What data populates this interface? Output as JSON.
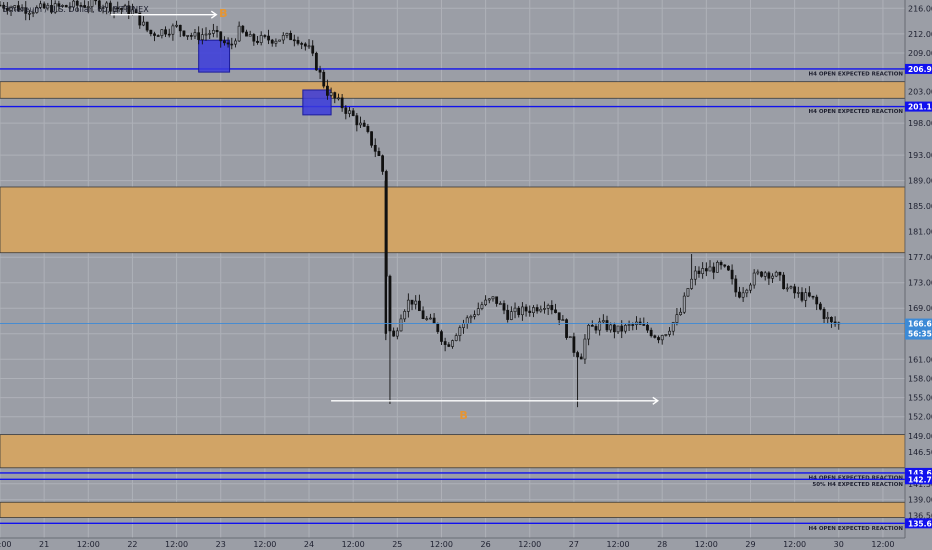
{
  "window": {
    "symbol_title": "Ethereum / U.S. Dollar, 60, BITFINEX"
  },
  "colors": {
    "background": "#9b9ea6",
    "grid": "#aeb1b8",
    "zone_fill": "#d1a466",
    "zone_border": "#3a3a3a",
    "level_line": "#1111ee",
    "current_price": "#3c8ad6",
    "candle_body": "#111111",
    "candle_wick": "#111111",
    "arrow": "#ffffff",
    "marker": "#e69532",
    "volume_box": "#3b3bdc"
  },
  "chart_data": {
    "type": "candlestick",
    "symbol": "ETHUSD",
    "timeframe": "60",
    "exchange": "BITFINEX",
    "ylim": [
      133.0,
      217.3
    ],
    "price_ticks": [
      "216.00",
      "212.00",
      "209.00",
      "203.00",
      "198.00",
      "193.00",
      "189.00",
      "185.00",
      "181.00",
      "177.00",
      "173.00",
      "169.00",
      "165.00",
      "161.00",
      "158.00",
      "155.00",
      "152.00",
      "149.00",
      "146.50",
      "141.50",
      "139.00",
      "136.50"
    ],
    "time_axis": {
      "range_days": [
        20.5,
        30.75
      ],
      "ticks": [
        {
          "t": 20.5,
          "label": "12:00"
        },
        {
          "t": 21.0,
          "label": "21"
        },
        {
          "t": 21.5,
          "label": "12:00"
        },
        {
          "t": 22.0,
          "label": "22"
        },
        {
          "t": 22.5,
          "label": "12:00"
        },
        {
          "t": 23.0,
          "label": "23"
        },
        {
          "t": 23.5,
          "label": "12:00"
        },
        {
          "t": 24.0,
          "label": "24"
        },
        {
          "t": 24.5,
          "label": "12:00"
        },
        {
          "t": 25.0,
          "label": "25"
        },
        {
          "t": 25.5,
          "label": "12:00"
        },
        {
          "t": 26.0,
          "label": "26"
        },
        {
          "t": 26.5,
          "label": "12:00"
        },
        {
          "t": 27.0,
          "label": "27"
        },
        {
          "t": 27.5,
          "label": "12:00"
        },
        {
          "t": 28.0,
          "label": "28"
        },
        {
          "t": 28.5,
          "label": "12:00"
        },
        {
          "t": 29.0,
          "label": "29"
        },
        {
          "t": 29.5,
          "label": "12:00"
        },
        {
          "t": 30.0,
          "label": "30"
        },
        {
          "t": 30.5,
          "label": "12:00"
        }
      ]
    },
    "price_path": [
      [
        20.5,
        216.5
      ],
      [
        20.85,
        215.8
      ],
      [
        21.2,
        216.2
      ],
      [
        21.6,
        216.8
      ],
      [
        22.0,
        215.5
      ],
      [
        22.2,
        212.0
      ],
      [
        22.5,
        213.0
      ],
      [
        22.7,
        211.5
      ],
      [
        22.9,
        212.3
      ],
      [
        23.0,
        211.0
      ],
      [
        23.1,
        209.8
      ],
      [
        23.2,
        212.5
      ],
      [
        23.35,
        211.0
      ],
      [
        23.6,
        211.2
      ],
      [
        23.85,
        211.6
      ],
      [
        24.0,
        209.5
      ],
      [
        24.1,
        206.5
      ],
      [
        24.2,
        203.0
      ],
      [
        24.35,
        201.0
      ],
      [
        24.5,
        199.0
      ],
      [
        24.65,
        196.5
      ],
      [
        24.8,
        192.5
      ],
      [
        24.85,
        189.5
      ],
      [
        24.87,
        176.0
      ],
      [
        24.9,
        166.0
      ],
      [
        24.95,
        164.0
      ],
      [
        25.05,
        168.5
      ],
      [
        25.15,
        170.5
      ],
      [
        25.3,
        167.5
      ],
      [
        25.45,
        166.0
      ],
      [
        25.55,
        163.0
      ],
      [
        25.7,
        166.0
      ],
      [
        25.85,
        168.0
      ],
      [
        25.95,
        169.5
      ],
      [
        26.1,
        170.5
      ],
      [
        26.25,
        168.0
      ],
      [
        26.4,
        168.5
      ],
      [
        26.55,
        169.0
      ],
      [
        26.7,
        170.0
      ],
      [
        26.85,
        167.5
      ],
      [
        26.95,
        164.0
      ],
      [
        27.0,
        162.5
      ],
      [
        27.08,
        161.5
      ],
      [
        27.15,
        165.5
      ],
      [
        27.3,
        166.5
      ],
      [
        27.5,
        165.5
      ],
      [
        27.7,
        166.5
      ],
      [
        27.85,
        165.5
      ],
      [
        27.95,
        164.5
      ],
      [
        28.05,
        165.5
      ],
      [
        28.2,
        168.0
      ],
      [
        28.3,
        172.5
      ],
      [
        28.38,
        174.5
      ],
      [
        28.5,
        175.0
      ],
      [
        28.65,
        175.5
      ],
      [
        28.75,
        174.5
      ],
      [
        28.85,
        171.0
      ],
      [
        28.95,
        172.5
      ],
      [
        29.05,
        174.0
      ],
      [
        29.15,
        174.8
      ],
      [
        29.3,
        174.0
      ],
      [
        29.42,
        172.0
      ],
      [
        29.55,
        171.0
      ],
      [
        29.7,
        170.5
      ],
      [
        29.83,
        168.0
      ],
      [
        29.92,
        166.5
      ],
      [
        30.0,
        166.6
      ]
    ],
    "low_wicks": [
      [
        24.92,
        154.0
      ],
      [
        27.05,
        153.5
      ]
    ],
    "high_wicks": [
      [
        28.35,
        177.5
      ]
    ],
    "zones": [
      {
        "from": 201.9,
        "to": 204.5
      },
      {
        "from": 177.7,
        "to": 188.0
      },
      {
        "from": 144.0,
        "to": 149.2
      },
      {
        "from": 136.2,
        "to": 138.6
      }
    ],
    "levels": [
      {
        "price": 206.5,
        "label": "H4 OPEN EXPECTED REACTION",
        "tag": "206.93"
      },
      {
        "price": 200.6,
        "label": "H4 OPEN EXPECTED REACTION",
        "tag": "201.15"
      },
      {
        "price": 143.2,
        "label": "H4 OPEN EXPECTED REACTION",
        "tag": "143.62"
      },
      {
        "price": 142.2,
        "label": "50% H4 EXPECTED REACTION",
        "tag": "142.72"
      },
      {
        "price": 135.3,
        "label": "H4 OPEN EXPECTED REACTION",
        "tag": "135.66"
      }
    ],
    "current_price": {
      "price": 166.6,
      "tag": "166.65",
      "countdown": "56:35"
    },
    "boxes": [
      {
        "t0": 22.75,
        "t1": 23.1,
        "p0": 206.0,
        "p1": 211.0
      },
      {
        "t0": 23.93,
        "t1": 24.25,
        "p0": 199.3,
        "p1": 203.2
      }
    ],
    "arrows": [
      {
        "t0": 21.75,
        "t1": 22.95,
        "price": 215.0,
        "marker": "B",
        "marker_t": 23.03,
        "marker_p": 215.3
      },
      {
        "t0": 24.25,
        "t1": 27.95,
        "price": 154.5,
        "marker": "B",
        "marker_t": 25.75,
        "marker_p": 152.3
      }
    ]
  }
}
